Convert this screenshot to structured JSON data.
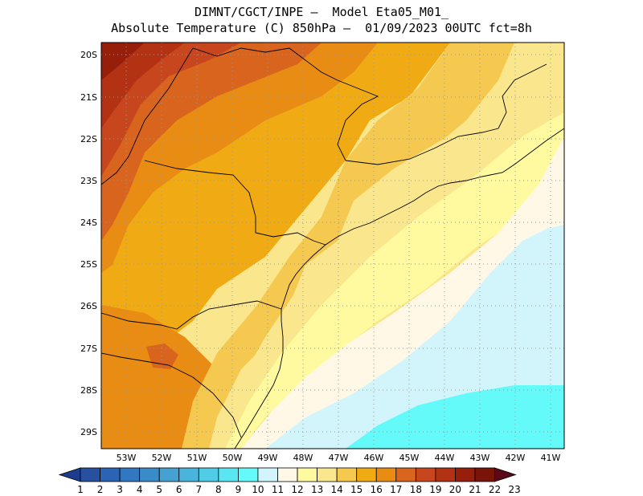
{
  "header": {
    "line1": "DIMNT/CGCT/INPE –  Model Eta05_M01_",
    "line2": "Absolute Temperature (C) 850hPa –  01/09/2023 00UTC fct=8h"
  },
  "map": {
    "lat_labels": [
      "20S",
      "21S",
      "22S",
      "23S",
      "24S",
      "25S",
      "26S",
      "27S",
      "28S",
      "29S"
    ],
    "lon_labels": [
      "53W",
      "52W",
      "51W",
      "50W",
      "49W",
      "48W",
      "47W",
      "46W",
      "45W",
      "44W",
      "43W",
      "42W",
      "41W"
    ]
  },
  "colorbar": {
    "labels": [
      "1",
      "2",
      "3",
      "4",
      "5",
      "6",
      "7",
      "8",
      "9",
      "10",
      "11",
      "12",
      "13",
      "14",
      "15",
      "16",
      "17",
      "18",
      "19",
      "20",
      "21",
      "22",
      "23"
    ],
    "colors": [
      "#1e3c8c",
      "#2850a0",
      "#2c64b4",
      "#3278c0",
      "#3a8cc8",
      "#46a0d2",
      "#4ab4dc",
      "#50cce6",
      "#5ae6f0",
      "#64fafa",
      "#d2f5fc",
      "#fff8e6",
      "#fffaa0",
      "#fae68c",
      "#f5c850",
      "#f0aa14",
      "#e88c14",
      "#d8641e",
      "#c8461e",
      "#b43214",
      "#961e0a",
      "#781408",
      "#5a0a14"
    ]
  },
  "field": {
    "background": "#fae68c",
    "palette": {
      "t11": "#d2f5fc",
      "t10": "#64fafa",
      "t12": "#fff8e6",
      "t13": "#fffaa0",
      "t14": "#fae68c",
      "t15": "#f5c850",
      "t16": "#f0aa14",
      "t17": "#e88c14",
      "t18": "#d8641e",
      "t19": "#c8461e",
      "t20": "#b43214",
      "t21": "#961e0a"
    }
  }
}
